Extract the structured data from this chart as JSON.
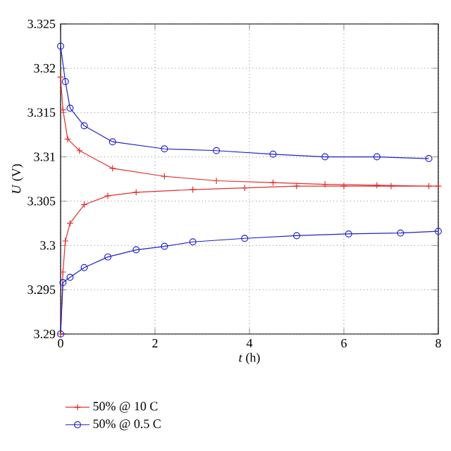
{
  "chart_data": {
    "type": "line",
    "xlabel": "*t* (h)",
    "ylabel": "*U* (V)",
    "xlim": [
      0,
      8
    ],
    "ylim": [
      3.29,
      3.325
    ],
    "xticks": [
      0,
      2,
      4,
      6,
      8
    ],
    "yticks": [
      3.29,
      3.295,
      3.3,
      3.305,
      3.31,
      3.315,
      3.32,
      3.325
    ],
    "grid": true,
    "legend": "bottom left",
    "line_style": "solid",
    "series": [
      {
        "name": "50% @ 10 C",
        "color": "#e03030",
        "marker": "cross",
        "x": [
          0,
          0.05,
          0.15,
          0.4,
          1.1,
          2.2,
          3.3,
          4.5,
          5.6,
          6.7,
          7.8,
          null,
          0,
          0.05,
          0.1,
          0.2,
          0.5,
          1.0,
          1.6,
          2.8,
          3.9,
          5,
          6,
          7,
          8
        ],
        "values": [
          3.319,
          3.3153,
          3.312,
          3.3107,
          3.3087,
          3.3078,
          3.3073,
          3.3071,
          3.3069,
          3.3068,
          3.3067,
          null,
          3.29,
          3.297,
          3.3005,
          3.3025,
          3.3046,
          3.3056,
          3.306,
          3.3063,
          3.3065,
          3.3067,
          3.3067,
          3.3067,
          3.3067
        ]
      },
      {
        "name": "50% @ 0.5 C",
        "color": "#2020c8",
        "marker": "circle",
        "x": [
          0,
          0.1,
          0.2,
          0.5,
          1.1,
          2.2,
          3.3,
          4.5,
          5.6,
          6.7,
          7.8,
          null,
          0,
          0.05,
          0.2,
          0.5,
          1.0,
          1.6,
          2.2,
          2.8,
          3.9,
          5,
          6.1,
          7.2,
          8
        ],
        "values": [
          3.3225,
          3.3185,
          3.3155,
          3.3135,
          3.3117,
          3.3109,
          3.3107,
          3.3103,
          3.31,
          3.31,
          3.3098,
          null,
          3.29,
          3.2958,
          3.2964,
          3.2975,
          3.2987,
          3.2995,
          3.2999,
          3.3004,
          3.3008,
          3.3011,
          3.3013,
          3.3014,
          3.3016
        ]
      }
    ]
  }
}
